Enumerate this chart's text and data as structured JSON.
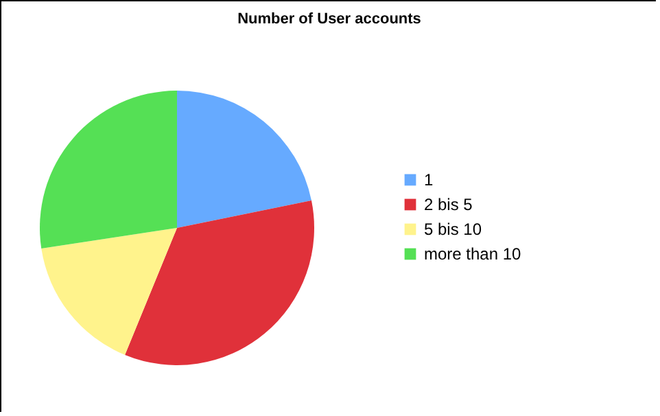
{
  "chart_data": {
    "type": "pie",
    "title": "Number of User accounts",
    "categories": [
      "1",
      "2 bis 5",
      "5 bis 10",
      "more than 10"
    ],
    "values": [
      21.8,
      34.4,
      16.4,
      27.4
    ],
    "colors": [
      "#66aaff",
      "#e0313a",
      "#fff38c",
      "#55e055"
    ],
    "legend": "right"
  }
}
